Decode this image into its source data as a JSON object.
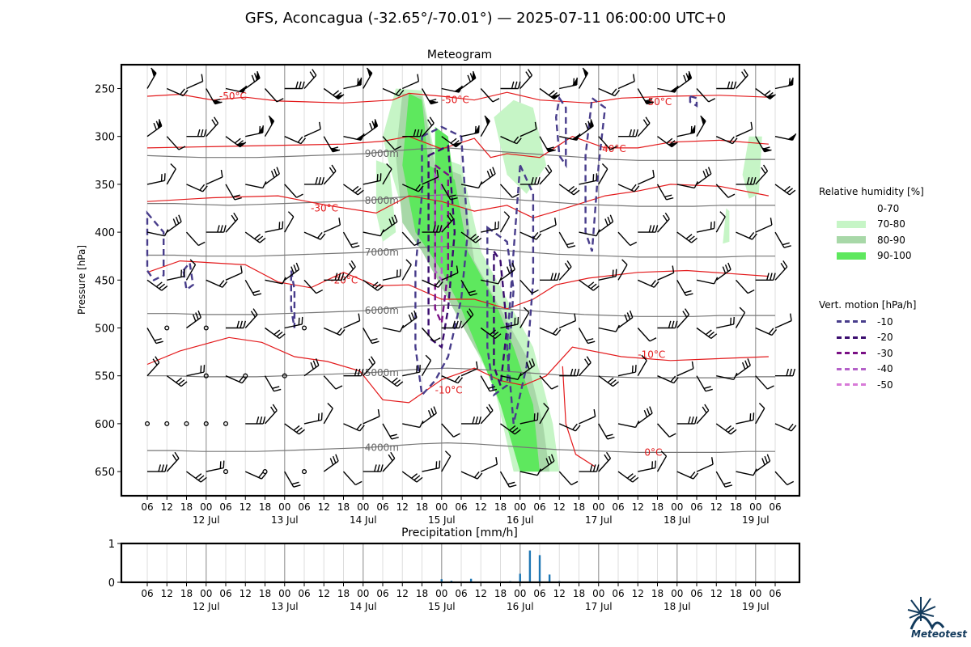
{
  "title": "GFS, Aconcagua (-32.65°/-70.01°) — 2025-07-11 06:00:00 UTC+0",
  "chart_data": [
    {
      "type": "meteogram",
      "title": "Meteogram",
      "ylabel": "Pressure [hPa]",
      "y_axis": "pressure, inverted",
      "ylim": [
        675,
        230
      ],
      "y_ticks": [
        250,
        300,
        350,
        400,
        450,
        500,
        550,
        600,
        650
      ],
      "time_hours": [
        0,
        192
      ],
      "x_hour_ticks": [
        "06",
        "12",
        "18",
        "00",
        "06",
        "12",
        "18",
        "00",
        "06",
        "12",
        "18",
        "00",
        "06",
        "12",
        "18",
        "00",
        "06",
        "12",
        "18",
        "00",
        "06",
        "12",
        "18",
        "00",
        "06",
        "12",
        "18",
        "00",
        "06",
        "12",
        "18",
        "00",
        "06"
      ],
      "x_day_labels": [
        "12 Jul",
        "13 Jul",
        "14 Jul",
        "15 Jul",
        "16 Jul",
        "17 Jul",
        "18 Jul",
        "19 Jul"
      ],
      "geopotential_labels": [
        "9000m",
        "8000m",
        "7000m",
        "6000m",
        "5000m",
        "4000m"
      ],
      "geopotential_levels": [
        {
          "label": "9000m",
          "hpa": [
            320,
            321,
            322,
            322,
            322,
            321,
            320,
            319,
            318,
            315,
            313,
            312,
            314,
            316,
            318,
            320,
            322,
            324,
            325,
            325,
            325,
            325,
            324,
            324
          ]
        },
        {
          "label": "8000m",
          "hpa": [
            370,
            370,
            371,
            372,
            371,
            370,
            369,
            368,
            367,
            364,
            362,
            361,
            363,
            365,
            367,
            369,
            371,
            372,
            373,
            373,
            373,
            372,
            372,
            372
          ]
        },
        {
          "label": "7000m",
          "hpa": [
            424,
            424,
            425,
            425,
            425,
            424,
            423,
            422,
            421,
            418,
            416,
            415,
            417,
            419,
            421,
            423,
            424,
            425,
            426,
            426,
            426,
            426,
            425,
            425
          ]
        },
        {
          "label": "6000m",
          "hpa": [
            485,
            485,
            486,
            486,
            486,
            485,
            484,
            483,
            482,
            479,
            477,
            476,
            478,
            480,
            482,
            484,
            486,
            487,
            488,
            488,
            488,
            487,
            487,
            487
          ]
        },
        {
          "label": "5000m",
          "hpa": [
            550,
            550,
            551,
            551,
            551,
            550,
            549,
            548,
            547,
            545,
            543,
            542,
            543,
            545,
            547,
            549,
            550,
            551,
            552,
            552,
            552,
            552,
            551,
            551
          ]
        },
        {
          "label": "4000m",
          "hpa": [
            628,
            628,
            629,
            629,
            629,
            628,
            627,
            626,
            625,
            623,
            621,
            620,
            621,
            623,
            625,
            627,
            628,
            629,
            630,
            630,
            630,
            630,
            629,
            629
          ]
        }
      ],
      "temperature_labels": [
        "-50°C",
        "-50°C",
        "-50°C",
        "-40°C",
        "-30°C",
        "-20°C",
        "-10°C",
        "-10°C",
        "0°C"
      ],
      "isotherms": [
        {
          "label": "-50°C",
          "points": [
            [
              0,
              258
            ],
            [
              10,
              256
            ],
            [
              20,
              262
            ],
            [
              30,
              259
            ],
            [
              40,
              263
            ],
            [
              60,
              265
            ],
            [
              75,
              262
            ],
            [
              80,
              255
            ],
            [
              90,
              258
            ],
            [
              100,
              262
            ],
            [
              110,
              254
            ],
            [
              120,
              262
            ],
            [
              135,
              265
            ],
            [
              145,
              260
            ],
            [
              160,
              258
            ],
            [
              175,
              257
            ],
            [
              190,
              259
            ]
          ]
        },
        {
          "label": "-40°C",
          "points": [
            [
              0,
              312
            ],
            [
              30,
              310
            ],
            [
              60,
              308
            ],
            [
              72,
              305
            ],
            [
              80,
              300
            ],
            [
              90,
              313
            ],
            [
              100,
              302
            ],
            [
              105,
              322
            ],
            [
              110,
              318
            ],
            [
              120,
              322
            ],
            [
              130,
              300
            ],
            [
              140,
              312
            ],
            [
              150,
              312
            ],
            [
              160,
              306
            ],
            [
              175,
              304
            ],
            [
              190,
              308
            ]
          ]
        },
        {
          "label": "-30°C",
          "points": [
            [
              0,
              368
            ],
            [
              20,
              364
            ],
            [
              40,
              362
            ],
            [
              55,
              372
            ],
            [
              70,
              380
            ],
            [
              80,
              362
            ],
            [
              90,
              368
            ],
            [
              100,
              378
            ],
            [
              110,
              372
            ],
            [
              118,
              385
            ],
            [
              125,
              378
            ],
            [
              140,
              362
            ],
            [
              150,
              357
            ],
            [
              160,
              350
            ],
            [
              175,
              352
            ],
            [
              190,
              362
            ]
          ]
        },
        {
          "label": "-20°C",
          "points": [
            [
              0,
              442
            ],
            [
              10,
              430
            ],
            [
              30,
              434
            ],
            [
              40,
              452
            ],
            [
              50,
              458
            ],
            [
              60,
              442
            ],
            [
              70,
              456
            ],
            [
              80,
              455
            ],
            [
              90,
              470
            ],
            [
              100,
              470
            ],
            [
              110,
              480
            ],
            [
              118,
              470
            ],
            [
              125,
              455
            ],
            [
              135,
              448
            ],
            [
              150,
              442
            ],
            [
              165,
              440
            ],
            [
              190,
              446
            ]
          ]
        },
        {
          "label": "-10°C",
          "points": [
            [
              0,
              538
            ],
            [
              10,
              524
            ],
            [
              25,
              510
            ],
            [
              35,
              515
            ],
            [
              45,
              530
            ],
            [
              55,
              535
            ],
            [
              65,
              545
            ],
            [
              72,
              575
            ],
            [
              80,
              578
            ],
            [
              90,
              554
            ],
            [
              100,
              542
            ],
            [
              108,
              555
            ],
            [
              115,
              560
            ],
            [
              122,
              550
            ],
            [
              130,
              520
            ],
            [
              145,
              530
            ],
            [
              160,
              534
            ],
            [
              190,
              530
            ]
          ]
        },
        {
          "label": "0°C",
          "points": [
            [
              127,
              540
            ],
            [
              128,
              600
            ],
            [
              131,
              632
            ],
            [
              137,
              645
            ]
          ]
        }
      ],
      "relative_humidity_legend": {
        "title": "Relative humidity [%]",
        "bins": [
          "0-70",
          "70-80",
          "80-90",
          "90-100"
        ],
        "colors": [
          "#ffffff",
          "#c6f5c6",
          "#a8d8a8",
          "#5ee85e"
        ]
      },
      "vertical_motion_legend": {
        "title": "Vert. motion [hPa/h]",
        "levels": [
          "-10",
          "-20",
          "-30",
          "-40",
          "-50"
        ],
        "colors": [
          "#483d8b",
          "#3a0c6e",
          "#7a1085",
          "#b460c8",
          "#d87ad8"
        ]
      }
    },
    {
      "type": "bar",
      "title": "Precipitation [mm/h]",
      "ylim": [
        0,
        1
      ],
      "y_ticks": [
        0,
        1
      ],
      "x_hour_ticks": [
        "06",
        "12",
        "18",
        "00",
        "06",
        "12",
        "18",
        "00",
        "06",
        "12",
        "18",
        "00",
        "06",
        "12",
        "18",
        "00",
        "06",
        "12",
        "18",
        "00",
        "06",
        "12",
        "18",
        "00",
        "06",
        "12",
        "18",
        "00",
        "06",
        "12",
        "18",
        "00",
        "06"
      ],
      "x_day_labels": [
        "12 Jul",
        "13 Jul",
        "14 Jul",
        "15 Jul",
        "16 Jul",
        "17 Jul",
        "18 Jul",
        "19 Jul"
      ],
      "series": [
        {
          "x_hours": [
            90,
            93,
            99,
            111,
            114,
            117,
            120,
            123,
            126
          ],
          "values": [
            0.08,
            0.04,
            0.09,
            0.03,
            0.22,
            0.82,
            0.7,
            0.2,
            0.03
          ]
        }
      ]
    }
  ],
  "branding": {
    "logo_text": "Meteotest"
  }
}
